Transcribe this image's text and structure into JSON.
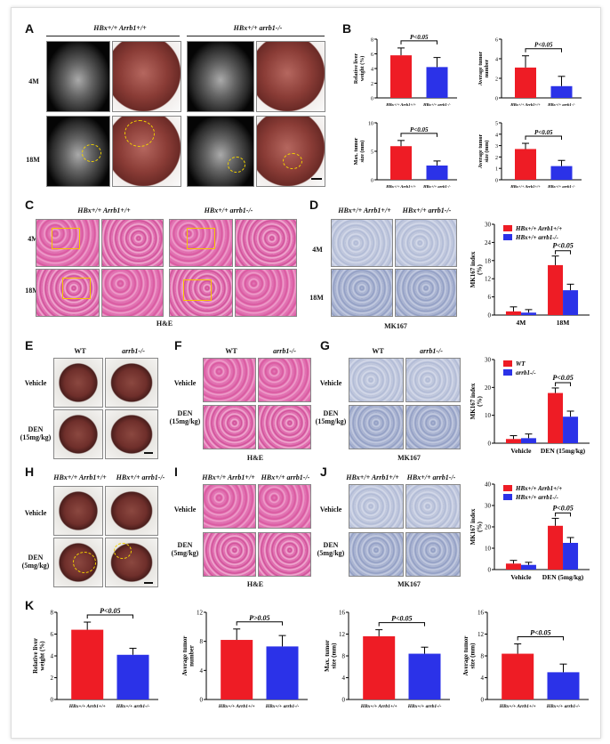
{
  "panels": {
    "A": "A",
    "B": "B",
    "C": "C",
    "D": "D",
    "E": "E",
    "F": "F",
    "G": "G",
    "H": "H",
    "I": "I",
    "J": "J",
    "K": "K"
  },
  "groups": {
    "hbx_arrb1_wt": "HBx+/+ Arrb1+/+",
    "hbx_arrb1_ko": "HBx+/+ arrb1-/-",
    "wt": "WT",
    "arrb1_ko": "arrb1-/-"
  },
  "rows": {
    "m4": "4M",
    "m18": "18M",
    "vehicle": "Vehicle",
    "den15": "DEN (15mg/kg)",
    "den5": "DEN (5mg/kg)"
  },
  "captions": {
    "he": "H&E",
    "mk67": "MK167"
  },
  "colors": {
    "red": "#ee1c25",
    "blue": "#2b32e8"
  },
  "chart_data": [
    {
      "id": "B1",
      "type": "bar",
      "categories": [
        "HBx+/+ Arrb1+/+",
        "HBx+/+ arrb1-/-"
      ],
      "values": [
        5.8,
        4.2
      ],
      "errors": [
        1.0,
        1.3
      ],
      "ylim": [
        0,
        8
      ],
      "yticks": [
        0,
        2,
        4,
        6,
        8
      ],
      "ylabel": "Relative liver weight (%)",
      "sig": "P<0.05"
    },
    {
      "id": "B2",
      "type": "bar",
      "categories": [
        "HBx+/+ Arrb1+/+",
        "HBx+/+ arrb1-/-"
      ],
      "values": [
        3.1,
        1.2
      ],
      "errors": [
        1.2,
        1.0
      ],
      "ylim": [
        0,
        6
      ],
      "yticks": [
        0,
        2,
        4,
        6
      ],
      "ylabel": "Average tumor number",
      "sig": "P<0.05"
    },
    {
      "id": "B3",
      "type": "bar",
      "categories": [
        "HBx+/+ Arrb1+/+",
        "HBx+/+ arrb1-/-"
      ],
      "values": [
        5.9,
        2.5
      ],
      "errors": [
        1.0,
        0.8
      ],
      "ylim": [
        0,
        10
      ],
      "yticks": [
        0,
        5,
        10
      ],
      "ylabel": "Max. tumor size (mm)",
      "sig": "P<0.05"
    },
    {
      "id": "B4",
      "type": "bar",
      "categories": [
        "HBx+/+ Arrb1+/+",
        "HBx+/+ arrb1-/-"
      ],
      "values": [
        2.7,
        1.2
      ],
      "errors": [
        0.5,
        0.5
      ],
      "ylim": [
        0,
        5
      ],
      "yticks": [
        0,
        1,
        2,
        3,
        4,
        5
      ],
      "ylabel": "Average tumor size (mm)",
      "sig": "P<0.05"
    },
    {
      "id": "D",
      "type": "bar",
      "categories": [
        "4M",
        "18M"
      ],
      "series": [
        {
          "name": "HBx+/+ Arrb1+/+",
          "values": [
            1.2,
            16.5
          ],
          "errors": [
            1.5,
            3.0
          ]
        },
        {
          "name": "HBx+/+ arrb1-/-",
          "values": [
            0.8,
            8.2
          ],
          "errors": [
            1.0,
            2.0
          ]
        }
      ],
      "ylim": [
        0,
        30
      ],
      "yticks": [
        0,
        6,
        12,
        18,
        24,
        30
      ],
      "ylabel": "MK167 index (%)",
      "sig": "P<0.05"
    },
    {
      "id": "G",
      "type": "bar",
      "categories": [
        "Vehicle",
        "DEN (15mg/kg)"
      ],
      "series": [
        {
          "name": "WT",
          "values": [
            1.5,
            18.0
          ],
          "errors": [
            1.2,
            1.8
          ]
        },
        {
          "name": "arrb1-/-",
          "values": [
            1.8,
            9.5
          ],
          "errors": [
            1.5,
            2.0
          ]
        }
      ],
      "ylim": [
        0,
        30
      ],
      "yticks": [
        0,
        10,
        20,
        30
      ],
      "ylabel": "MK167 index (%)",
      "sig": "P<0.05"
    },
    {
      "id": "J",
      "type": "bar",
      "categories": [
        "Vehicle",
        "DEN (5mg/kg)"
      ],
      "series": [
        {
          "name": "HBx+/+ Arrb1+/+",
          "values": [
            2.8,
            20.5
          ],
          "errors": [
            1.5,
            3.5
          ]
        },
        {
          "name": "HBx+/+ arrb1-/-",
          "values": [
            2.2,
            12.5
          ],
          "errors": [
            1.2,
            2.5
          ]
        }
      ],
      "ylim": [
        0,
        40
      ],
      "yticks": [
        0,
        10,
        20,
        30,
        40
      ],
      "ylabel": "MK167 index (%)",
      "sig": "P<0.05"
    },
    {
      "id": "K1",
      "type": "bar",
      "categories": [
        "HBx+/+ Arrb1+/+",
        "HBx+/+ arrb1-/-"
      ],
      "values": [
        6.4,
        4.1
      ],
      "errors": [
        0.7,
        0.6
      ],
      "ylim": [
        0,
        8
      ],
      "yticks": [
        0,
        2,
        4,
        6,
        8
      ],
      "ylabel": "Relative liver weight (%)",
      "sig": "P<0.05"
    },
    {
      "id": "K2",
      "type": "bar",
      "categories": [
        "HBx+/+ Arrb1+/+",
        "HBx+/+ arrb1-/-"
      ],
      "values": [
        8.2,
        7.3
      ],
      "errors": [
        1.5,
        1.5
      ],
      "ylim": [
        0,
        12
      ],
      "yticks": [
        0,
        4,
        8,
        12
      ],
      "ylabel": "Average tumor number",
      "sig": "P>0.05"
    },
    {
      "id": "K3",
      "type": "bar",
      "categories": [
        "HBx+/+ Arrb1+/+",
        "HBx+/+ arrb1-/-"
      ],
      "values": [
        11.6,
        8.4
      ],
      "errors": [
        1.2,
        1.2
      ],
      "ylim": [
        0,
        16
      ],
      "yticks": [
        0,
        4,
        8,
        12,
        16
      ],
      "ylabel": "Max. tumor size (mm)",
      "sig": "P<0.05"
    },
    {
      "id": "K4",
      "type": "bar",
      "categories": [
        "HBx+/+ Arrb1+/+",
        "HBx+/+ arrb1-/-"
      ],
      "values": [
        8.4,
        5.0
      ],
      "errors": [
        1.8,
        1.5
      ],
      "ylim": [
        0,
        16
      ],
      "yticks": [
        0,
        4,
        8,
        12,
        16
      ],
      "ylabel": "Average tumor size (mm)",
      "sig": "P<0.05"
    }
  ]
}
